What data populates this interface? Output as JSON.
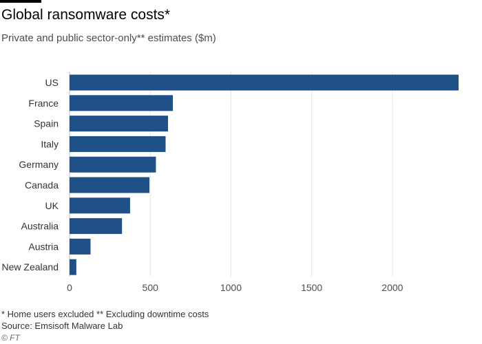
{
  "chart_data": {
    "type": "bar",
    "orientation": "horizontal",
    "title": "Global ransomware costs*",
    "subtitle": "Private and public sector-only** estimates ($m)",
    "categories": [
      "US",
      "France",
      "Spain",
      "Italy",
      "Germany",
      "Canada",
      "UK",
      "Australia",
      "Austria",
      "New Zealand"
    ],
    "values": [
      2410,
      640,
      610,
      595,
      535,
      495,
      375,
      325,
      130,
      42
    ],
    "xlim": [
      0,
      2410
    ],
    "xticks": [
      0,
      500,
      1000,
      1500,
      2000
    ],
    "grid": true,
    "bar_color": "#1f5087"
  },
  "footnote": "* Home users excluded ** Excluding downtime costs",
  "source": "Source: Emsisoft Malware Lab",
  "credit": "© FT"
}
